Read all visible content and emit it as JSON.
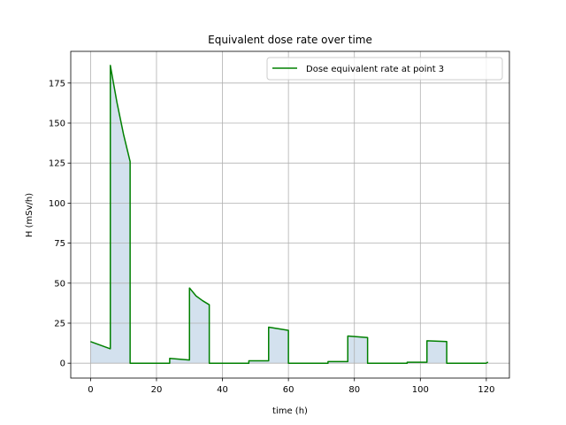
{
  "chart_data": {
    "type": "line",
    "title": "Equivalent dose rate over time",
    "xlabel": "time (h)",
    "ylabel": "H (mSv/h)",
    "xlim": [
      -6,
      127
    ],
    "ylim": [
      -9.3,
      194.8
    ],
    "xticks": [
      0,
      20,
      40,
      60,
      80,
      100,
      120
    ],
    "yticks": [
      0,
      25,
      50,
      75,
      100,
      125,
      150,
      175
    ],
    "grid": true,
    "legend_position": "top-right",
    "series": [
      {
        "name": "Dose equivalent rate at point 3",
        "color": "#008000",
        "fill_color": "#d3e1ee",
        "x": [
          0,
          6,
          6,
          8,
          10,
          12,
          12,
          24,
          24,
          30,
          30,
          32,
          34,
          36,
          36,
          48,
          48,
          54,
          54,
          60,
          60,
          72,
          72,
          78,
          78,
          84,
          84,
          96,
          96,
          102,
          102,
          108,
          108,
          120,
          120.5
        ],
        "y": [
          13.5,
          9,
          186,
          163,
          143,
          126,
          0,
          0,
          3,
          2,
          47,
          42,
          39,
          36.5,
          0,
          0,
          1.5,
          1.5,
          22.5,
          20.5,
          0,
          0,
          1,
          1,
          17,
          16,
          0,
          0,
          0.6,
          0.6,
          14,
          13.5,
          0,
          0,
          0.7
        ]
      }
    ]
  }
}
